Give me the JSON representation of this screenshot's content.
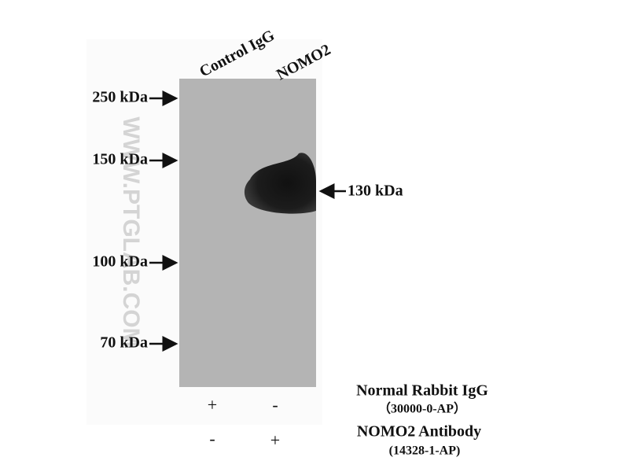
{
  "lanes": [
    "Control IgG",
    "NOMO2"
  ],
  "markers": [
    "250 kDa",
    "150 kDa",
    "100 kDa",
    "70 kDa"
  ],
  "band_label": "130 kDa",
  "watermark": "WWW.PTGLAB.COM",
  "rows": [
    {
      "label": "Normal Rabbit IgG",
      "catalog": "（30000-0-AP）",
      "signs": [
        "+",
        "-"
      ]
    },
    {
      "label": "NOMO2 Antibody",
      "catalog": "(14328-1-AP)",
      "signs": [
        "-",
        "+"
      ]
    }
  ]
}
